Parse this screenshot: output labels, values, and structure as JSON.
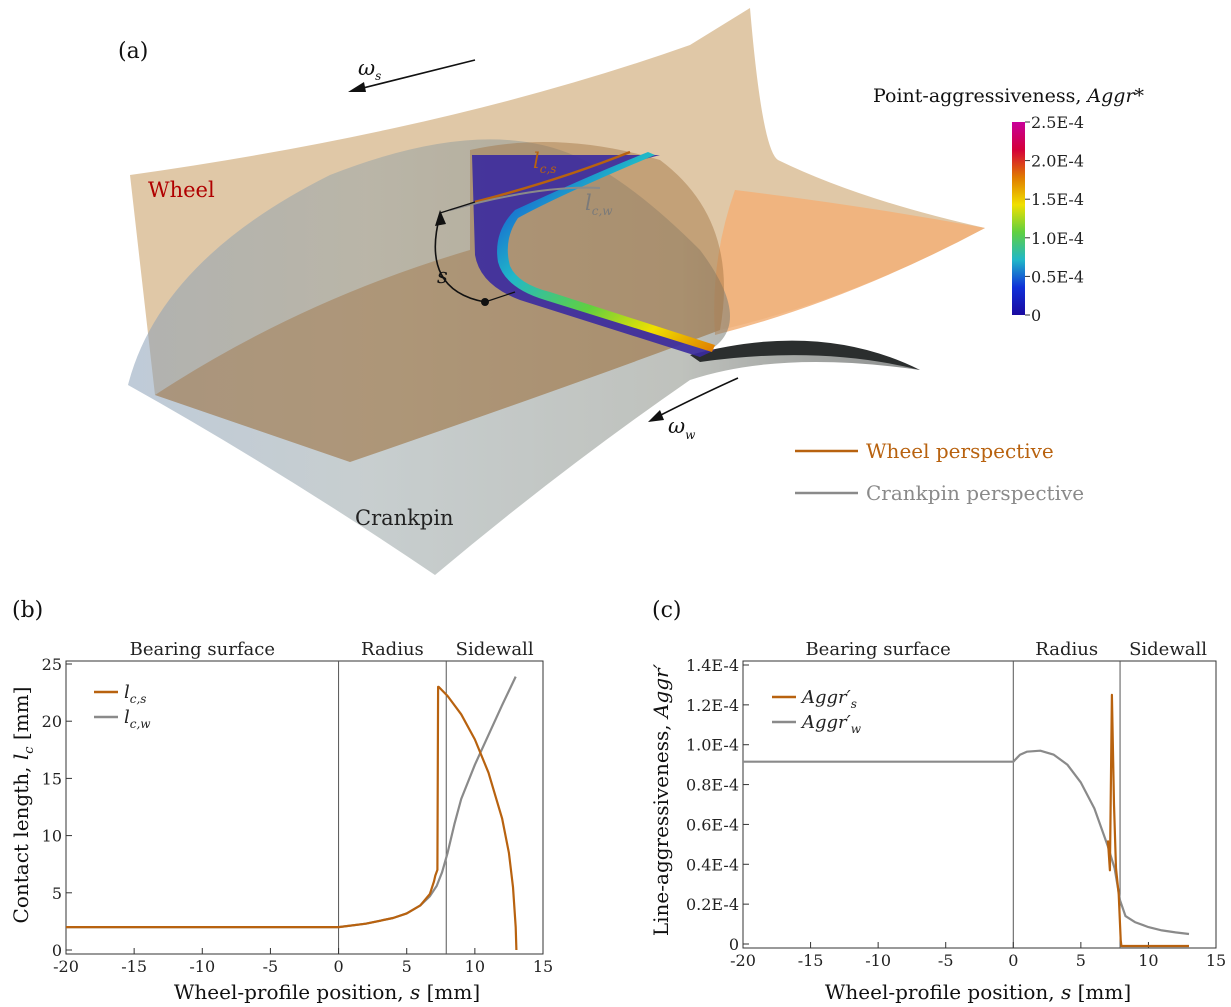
{
  "figure": {
    "panel_a": {
      "letter": "(a)",
      "wheel_label": "Wheel",
      "crankpin_label": "Crankpin",
      "omega_s": "ω",
      "omega_s_sub": "s",
      "omega_w": "ω",
      "omega_w_sub": "w",
      "s_label": "s",
      "lcs_main": "l",
      "lcs_sub": "c,s",
      "lcw_main": "l",
      "lcw_sub": "c,w",
      "colorbar": {
        "title": "Point-aggressiveness, ",
        "title_italic": "Aggr*",
        "ticks": [
          "2.5E-4",
          "2.0E-4",
          "1.5E-4",
          "1.0E-4",
          "0.5E-4",
          "0"
        ],
        "colors": [
          "#c8009a",
          "#d4003a",
          "#e07a00",
          "#f0e000",
          "#60d040",
          "#20b8c8",
          "#1030d8",
          "#1a0aa0"
        ]
      },
      "legend": {
        "wheel": "Wheel perspective",
        "crankpin": "Crankpin perspective"
      },
      "colors": {
        "wheel_line": "#b8620f",
        "crankpin_line": "#8a8a8a",
        "wheel_text": "#b00000"
      }
    }
  },
  "chart_data": [
    {
      "type": "line",
      "panel": "(b)",
      "regions": [
        "Bearing surface",
        "Radius",
        "Sidewall"
      ],
      "region_boundaries": [
        0,
        7.9
      ],
      "xlabel_main": "Wheel-profile position, ",
      "xlabel_italic": "s",
      "xlabel_unit": " [mm]",
      "ylabel_main": "Contact length, ",
      "ylabel_italic": "l",
      "ylabel_sub": "c",
      "ylabel_unit": " [mm]",
      "xlim": [
        -20,
        15
      ],
      "ylim": [
        0,
        25
      ],
      "xticks": [
        "-20",
        "-15",
        "-10",
        "-5",
        "0",
        "5",
        "10",
        "15"
      ],
      "yticks": [
        "0",
        "5",
        "10",
        "15",
        "20",
        "25"
      ],
      "series": [
        {
          "name": "l",
          "name_sub": "c,s",
          "color": "#b8620f",
          "x": [
            -20,
            -10,
            0,
            2,
            4,
            5,
            6,
            6.7,
            7.0,
            7.1,
            7.25,
            7.3,
            7.35,
            8,
            9,
            10,
            11,
            12,
            12.5,
            12.8,
            13.0,
            13.05
          ],
          "y": [
            2.0,
            2.0,
            2.0,
            2.3,
            2.8,
            3.2,
            3.9,
            4.9,
            6.0,
            6.5,
            7.0,
            23.0,
            23.0,
            22.2,
            20.6,
            18.4,
            15.5,
            11.5,
            8.5,
            5.5,
            2.0,
            0.0
          ]
        },
        {
          "name": "l",
          "name_sub": "c,w",
          "color": "#8a8a8a",
          "x": [
            -20,
            -10,
            0,
            2,
            4,
            5,
            6,
            6.7,
            7.2,
            7.6,
            8.0,
            8.5,
            9,
            10,
            11,
            12,
            13.0
          ],
          "y": [
            2.0,
            2.0,
            2.0,
            2.3,
            2.8,
            3.2,
            3.9,
            4.7,
            5.6,
            6.8,
            8.5,
            11.0,
            13.2,
            16.2,
            18.8,
            21.4,
            23.9
          ]
        }
      ]
    },
    {
      "type": "line",
      "panel": "(c)",
      "regions": [
        "Bearing surface",
        "Radius",
        "Sidewall"
      ],
      "region_boundaries": [
        0,
        7.9
      ],
      "xlabel_main": "Wheel-profile position, ",
      "xlabel_italic": "s",
      "xlabel_unit": " [mm]",
      "ylabel_main": "Line-aggressiveness, ",
      "ylabel_italic": "Aggr′",
      "xlim": [
        -20,
        15
      ],
      "ylim": [
        0,
        0.00014
      ],
      "xticks": [
        "-20",
        "-15",
        "-10",
        "-5",
        "0",
        "5",
        "10",
        "15"
      ],
      "yticks": [
        "0",
        "0.2E-4",
        "0.4E-4",
        "0.6E-4",
        "0.8E-4",
        "1.0E-4",
        "1.2E-4",
        "1.4E-4"
      ],
      "series": [
        {
          "name": "Aggr′",
          "name_sub": "s",
          "color": "#b8620f",
          "x": [
            7.0,
            7.15,
            7.3,
            7.45,
            7.6,
            7.8,
            7.95,
            8.0,
            8.1,
            13.0
          ],
          "y": [
            5.2e-05,
            3.7e-05,
            0.000125,
            7e-05,
            3.8e-05,
            2.5e-05,
            2e-06,
            -1e-06,
            -1e-06,
            -1e-06
          ]
        },
        {
          "name": "Aggr′",
          "name_sub": "w",
          "color": "#8a8a8a",
          "x": [
            -20,
            -10,
            0,
            0.5,
            1,
            2,
            3,
            4,
            5,
            6,
            7,
            7.5,
            7.9,
            8.3,
            9,
            10,
            11,
            12,
            13
          ],
          "y": [
            9.15e-05,
            9.15e-05,
            9.15e-05,
            9.5e-05,
            9.65e-05,
            9.7e-05,
            9.5e-05,
            9e-05,
            8.1e-05,
            6.8e-05,
            4.9e-05,
            3.8e-05,
            2.2e-05,
            1.4e-05,
            1.1e-05,
            8.5e-06,
            6.8e-06,
            5.8e-06,
            5e-06
          ]
        }
      ]
    }
  ]
}
